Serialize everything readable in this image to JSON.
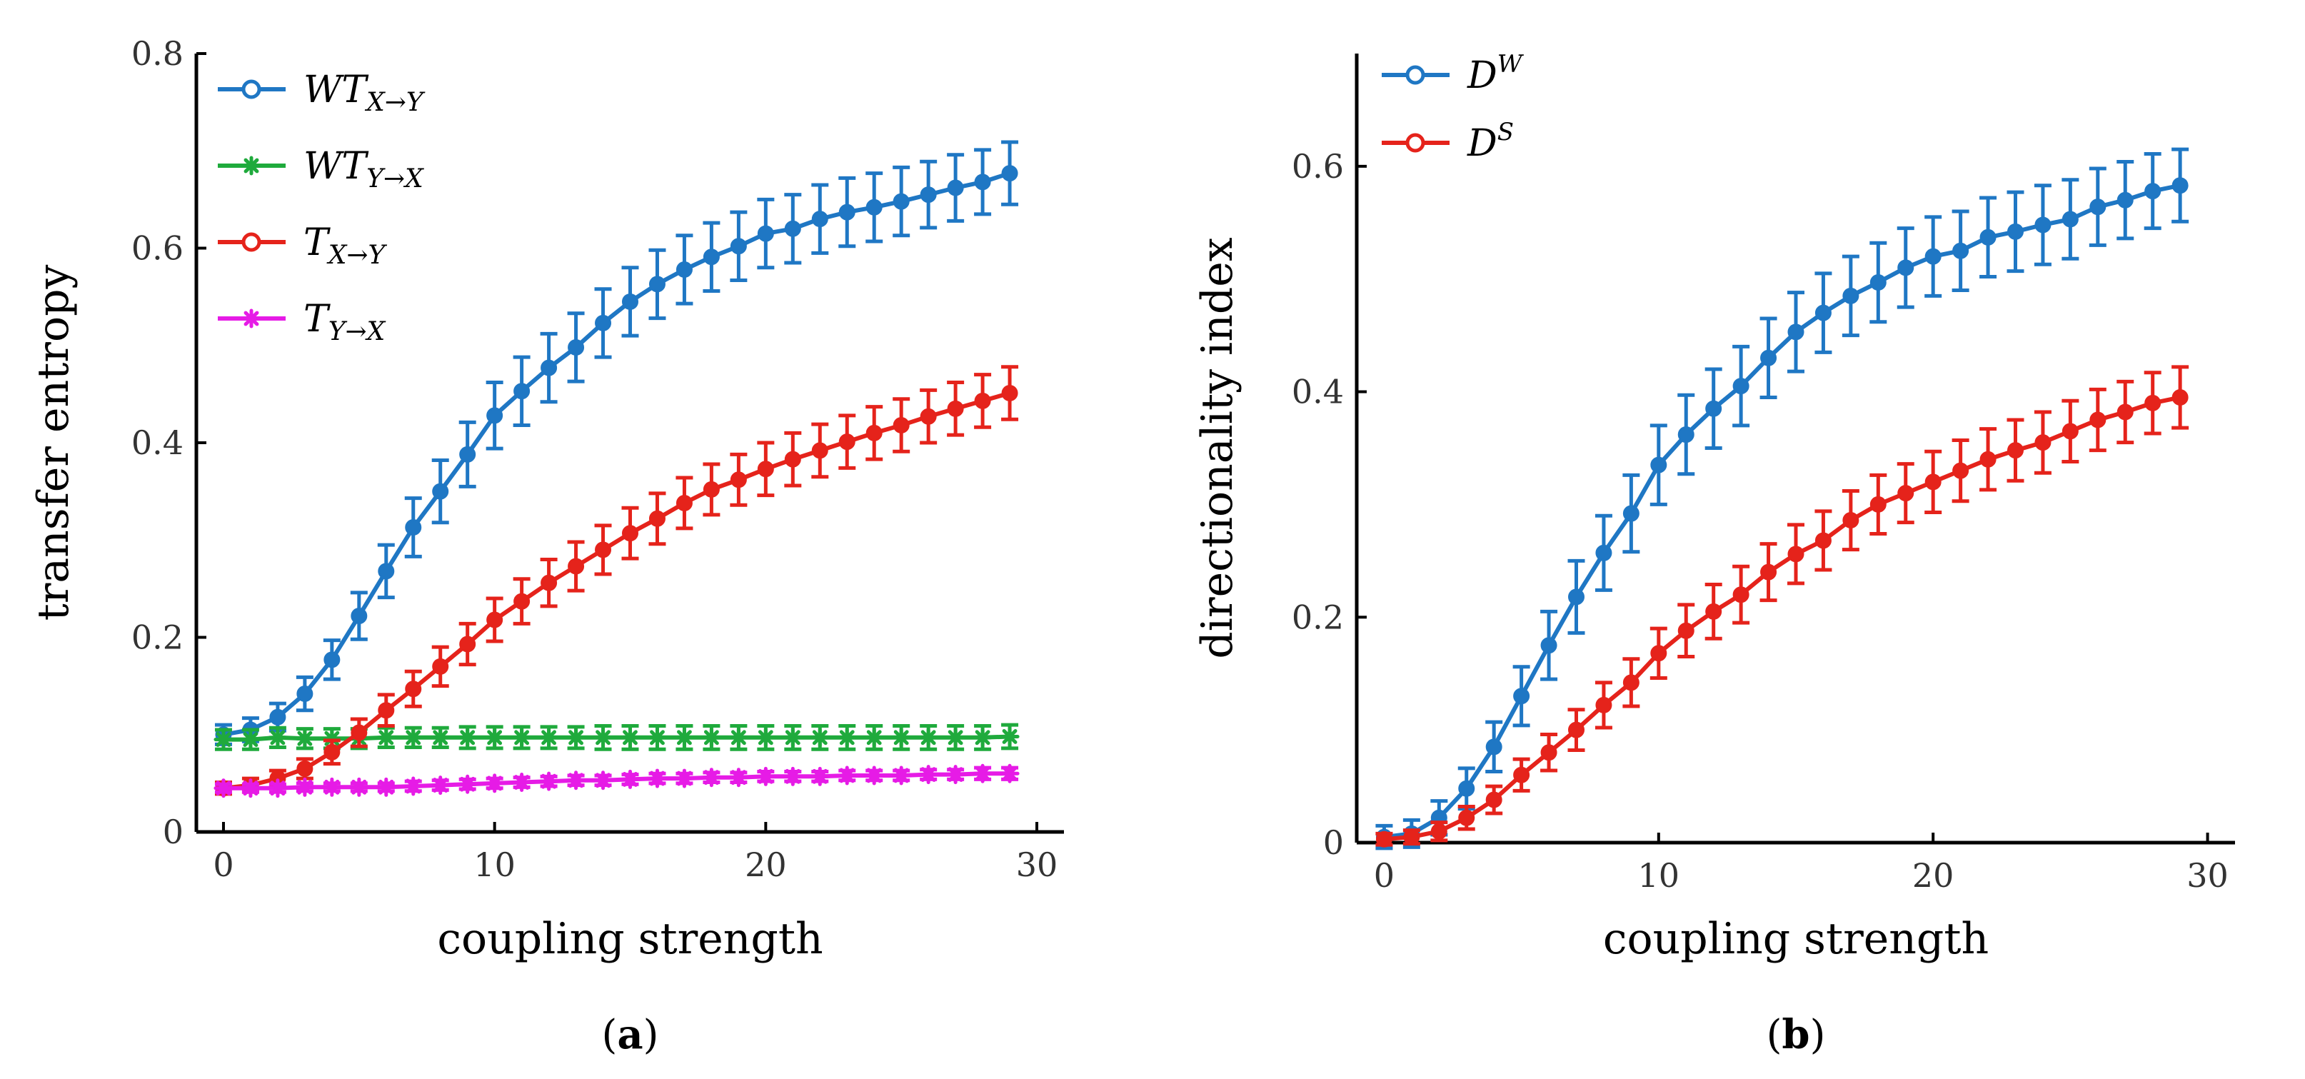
{
  "chart_data": [
    {
      "type": "line",
      "panel_label": "(a)",
      "xlabel": "coupling strength",
      "ylabel": "transfer entropy",
      "xlim": [
        -1,
        31
      ],
      "ylim": [
        0,
        0.8
      ],
      "xticks": [
        0,
        10,
        20,
        30
      ],
      "yticks": [
        0,
        0.2,
        0.4,
        0.6,
        0.8
      ],
      "xtick_labels": [
        "0",
        "10",
        "20",
        "30"
      ],
      "ytick_labels": [
        "0",
        "0.2",
        "0.4",
        "0.6",
        "0.8"
      ],
      "legend_position": "top-left",
      "series": [
        {
          "name": "WT_{X→Y}",
          "legend": {
            "main": "WT",
            "sub": "X→Y",
            "sup": ""
          },
          "color": "#1f77c4",
          "marker": "circle",
          "x": [
            0,
            1,
            2,
            3,
            4,
            5,
            6,
            7,
            8,
            9,
            10,
            11,
            12,
            13,
            14,
            15,
            16,
            17,
            18,
            19,
            20,
            21,
            22,
            23,
            24,
            25,
            26,
            27,
            28,
            29
          ],
          "values": [
            0.1,
            0.105,
            0.118,
            0.142,
            0.177,
            0.222,
            0.268,
            0.313,
            0.35,
            0.388,
            0.428,
            0.453,
            0.477,
            0.498,
            0.523,
            0.545,
            0.563,
            0.578,
            0.591,
            0.602,
            0.615,
            0.62,
            0.63,
            0.637,
            0.642,
            0.648,
            0.655,
            0.662,
            0.668,
            0.677
          ],
          "err": [
            0.01,
            0.012,
            0.014,
            0.017,
            0.02,
            0.024,
            0.027,
            0.03,
            0.032,
            0.033,
            0.034,
            0.035,
            0.035,
            0.035,
            0.035,
            0.035,
            0.035,
            0.035,
            0.035,
            0.035,
            0.035,
            0.035,
            0.035,
            0.035,
            0.035,
            0.035,
            0.034,
            0.034,
            0.033,
            0.032
          ]
        },
        {
          "name": "WT_{Y→X}",
          "legend": {
            "main": "WT",
            "sub": "Y→X",
            "sup": ""
          },
          "color": "#1faa3c",
          "marker": "star",
          "x": [
            0,
            1,
            2,
            3,
            4,
            5,
            6,
            7,
            8,
            9,
            10,
            11,
            12,
            13,
            14,
            15,
            16,
            17,
            18,
            19,
            20,
            21,
            22,
            23,
            24,
            25,
            26,
            27,
            28,
            29
          ],
          "values": [
            0.095,
            0.095,
            0.097,
            0.096,
            0.096,
            0.096,
            0.097,
            0.097,
            0.097,
            0.097,
            0.097,
            0.097,
            0.097,
            0.097,
            0.097,
            0.097,
            0.097,
            0.097,
            0.097,
            0.097,
            0.097,
            0.097,
            0.097,
            0.097,
            0.097,
            0.097,
            0.097,
            0.097,
            0.097,
            0.098
          ],
          "err": [
            0.01,
            0.01,
            0.01,
            0.01,
            0.01,
            0.01,
            0.01,
            0.01,
            0.01,
            0.011,
            0.011,
            0.011,
            0.011,
            0.011,
            0.012,
            0.012,
            0.012,
            0.012,
            0.012,
            0.012,
            0.012,
            0.012,
            0.012,
            0.012,
            0.012,
            0.012,
            0.012,
            0.012,
            0.012,
            0.012
          ]
        },
        {
          "name": "T_{X→Y}",
          "legend": {
            "main": "T",
            "sub": "X→Y",
            "sup": ""
          },
          "color": "#e5231b",
          "marker": "circle",
          "x": [
            0,
            1,
            2,
            3,
            4,
            5,
            6,
            7,
            8,
            9,
            10,
            11,
            12,
            13,
            14,
            15,
            16,
            17,
            18,
            19,
            20,
            21,
            22,
            23,
            24,
            25,
            26,
            27,
            28,
            29
          ],
          "values": [
            0.045,
            0.048,
            0.055,
            0.065,
            0.082,
            0.102,
            0.125,
            0.147,
            0.17,
            0.193,
            0.218,
            0.237,
            0.256,
            0.273,
            0.29,
            0.307,
            0.322,
            0.338,
            0.352,
            0.362,
            0.373,
            0.383,
            0.392,
            0.401,
            0.41,
            0.418,
            0.427,
            0.435,
            0.443,
            0.451
          ],
          "err": [
            0.006,
            0.007,
            0.008,
            0.01,
            0.012,
            0.014,
            0.016,
            0.018,
            0.02,
            0.021,
            0.022,
            0.023,
            0.024,
            0.025,
            0.025,
            0.026,
            0.026,
            0.026,
            0.026,
            0.026,
            0.027,
            0.027,
            0.027,
            0.027,
            0.027,
            0.027,
            0.027,
            0.027,
            0.027,
            0.027
          ]
        },
        {
          "name": "T_{Y→X}",
          "legend": {
            "main": "T",
            "sub": "Y→X",
            "sup": ""
          },
          "color": "#e61be6",
          "marker": "star",
          "x": [
            0,
            1,
            2,
            3,
            4,
            5,
            6,
            7,
            8,
            9,
            10,
            11,
            12,
            13,
            14,
            15,
            16,
            17,
            18,
            19,
            20,
            21,
            22,
            23,
            24,
            25,
            26,
            27,
            28,
            29
          ],
          "values": [
            0.045,
            0.045,
            0.045,
            0.046,
            0.046,
            0.046,
            0.046,
            0.047,
            0.048,
            0.049,
            0.05,
            0.051,
            0.052,
            0.053,
            0.053,
            0.054,
            0.055,
            0.055,
            0.056,
            0.056,
            0.057,
            0.057,
            0.057,
            0.058,
            0.058,
            0.058,
            0.059,
            0.059,
            0.06,
            0.06
          ],
          "err": [
            0.004,
            0.004,
            0.004,
            0.004,
            0.004,
            0.004,
            0.004,
            0.005,
            0.005,
            0.005,
            0.005,
            0.005,
            0.005,
            0.005,
            0.005,
            0.005,
            0.005,
            0.005,
            0.005,
            0.005,
            0.005,
            0.005,
            0.005,
            0.005,
            0.005,
            0.005,
            0.005,
            0.005,
            0.006,
            0.006
          ]
        }
      ]
    },
    {
      "type": "line",
      "panel_label": "(b)",
      "xlabel": "coupling strength",
      "ylabel": "directionality index",
      "xlim": [
        -1,
        31
      ],
      "ylim": [
        0,
        0.7
      ],
      "xticks": [
        0,
        10,
        20,
        30
      ],
      "yticks": [
        0,
        0.2,
        0.4,
        0.6
      ],
      "xtick_labels": [
        "0",
        "10",
        "20",
        "30"
      ],
      "ytick_labels": [
        "0",
        "0.2",
        "0.4",
        "0.6"
      ],
      "legend_position": "top-left",
      "series": [
        {
          "name": "D^W",
          "legend": {
            "main": "D",
            "sub": "",
            "sup": "W"
          },
          "color": "#1f77c4",
          "marker": "circle",
          "x": [
            0,
            1,
            2,
            3,
            4,
            5,
            6,
            7,
            8,
            9,
            10,
            11,
            12,
            13,
            14,
            15,
            16,
            17,
            18,
            19,
            20,
            21,
            22,
            23,
            24,
            25,
            26,
            27,
            28,
            29
          ],
          "values": [
            0.005,
            0.008,
            0.022,
            0.048,
            0.085,
            0.13,
            0.175,
            0.218,
            0.257,
            0.292,
            0.335,
            0.362,
            0.385,
            0.405,
            0.43,
            0.453,
            0.47,
            0.485,
            0.497,
            0.51,
            0.52,
            0.525,
            0.537,
            0.542,
            0.548,
            0.553,
            0.564,
            0.57,
            0.578,
            0.583
          ],
          "err": [
            0.01,
            0.012,
            0.015,
            0.018,
            0.022,
            0.026,
            0.03,
            0.032,
            0.033,
            0.034,
            0.035,
            0.035,
            0.035,
            0.035,
            0.035,
            0.035,
            0.035,
            0.035,
            0.035,
            0.035,
            0.035,
            0.035,
            0.035,
            0.035,
            0.035,
            0.035,
            0.034,
            0.034,
            0.033,
            0.032
          ]
        },
        {
          "name": "D^S",
          "legend": {
            "main": "D",
            "sub": "",
            "sup": "S"
          },
          "color": "#e5231b",
          "marker": "circle",
          "x": [
            0,
            1,
            2,
            3,
            4,
            5,
            6,
            7,
            8,
            9,
            10,
            11,
            12,
            13,
            14,
            15,
            16,
            17,
            18,
            19,
            20,
            21,
            22,
            23,
            24,
            25,
            26,
            27,
            28,
            29
          ],
          "values": [
            0.003,
            0.005,
            0.01,
            0.022,
            0.038,
            0.06,
            0.08,
            0.1,
            0.122,
            0.142,
            0.168,
            0.188,
            0.205,
            0.22,
            0.24,
            0.256,
            0.268,
            0.286,
            0.3,
            0.31,
            0.32,
            0.33,
            0.34,
            0.348,
            0.355,
            0.365,
            0.375,
            0.382,
            0.39,
            0.395
          ],
          "err": [
            0.005,
            0.006,
            0.008,
            0.01,
            0.012,
            0.014,
            0.016,
            0.018,
            0.02,
            0.021,
            0.022,
            0.023,
            0.024,
            0.025,
            0.025,
            0.026,
            0.026,
            0.026,
            0.026,
            0.026,
            0.027,
            0.027,
            0.027,
            0.027,
            0.027,
            0.027,
            0.027,
            0.027,
            0.027,
            0.027
          ]
        }
      ]
    }
  ]
}
